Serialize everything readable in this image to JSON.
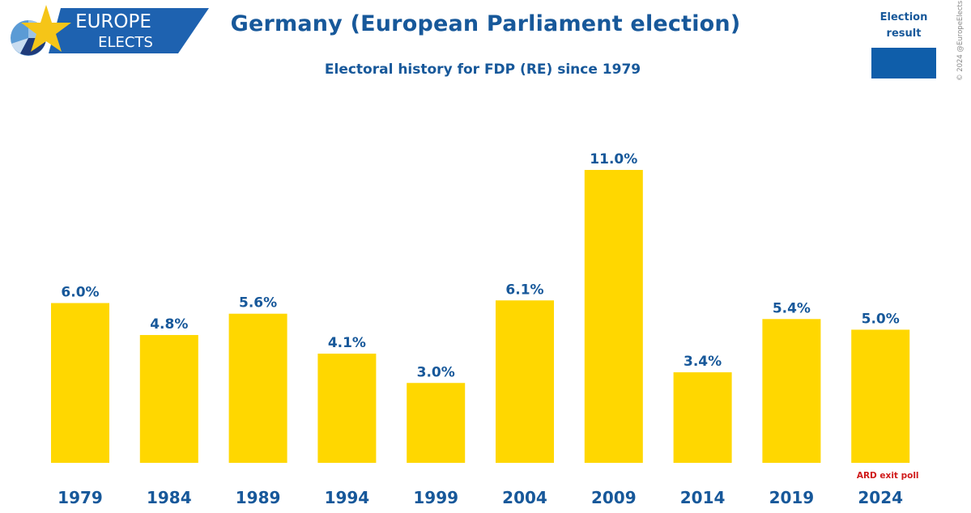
{
  "logo": {
    "line1": "EUROPE",
    "line2": "ELECTS"
  },
  "header": {
    "title": "Germany (European Parliament election)",
    "subtitle": "Electoral history for FDP (RE) since 1979"
  },
  "legend": {
    "label_line1": "Election",
    "label_line2": "result",
    "swatch_color": "#0f5eaa"
  },
  "copyright": "© 2024 @EuropeElects",
  "colors": {
    "bar": "#ffd700",
    "text": "#17589a",
    "note": "#d01a1a",
    "logo_blue": "#1e62b0",
    "star": "#f5c518"
  },
  "chart_data": {
    "type": "bar",
    "title": "Germany (European Parliament election)",
    "subtitle": "Electoral history for FDP (RE) since 1979",
    "xlabel": "",
    "ylabel": "",
    "ylim": [
      0,
      11
    ],
    "grid": false,
    "categories": [
      "1979",
      "1984",
      "1989",
      "1994",
      "1999",
      "2004",
      "2009",
      "2014",
      "2019",
      "2024"
    ],
    "values": [
      6.0,
      4.8,
      5.6,
      4.1,
      3.0,
      6.1,
      11.0,
      3.4,
      5.4,
      5.0
    ],
    "value_labels": [
      "6.0%",
      "4.8%",
      "5.6%",
      "4.1%",
      "3.0%",
      "6.1%",
      "11.0%",
      "3.4%",
      "5.4%",
      "5.0%"
    ],
    "annotations": [
      {
        "category": "2024",
        "text": "ARD exit poll"
      }
    ],
    "legend": {
      "entries": [
        "Election result"
      ],
      "placement": "top-right"
    }
  }
}
